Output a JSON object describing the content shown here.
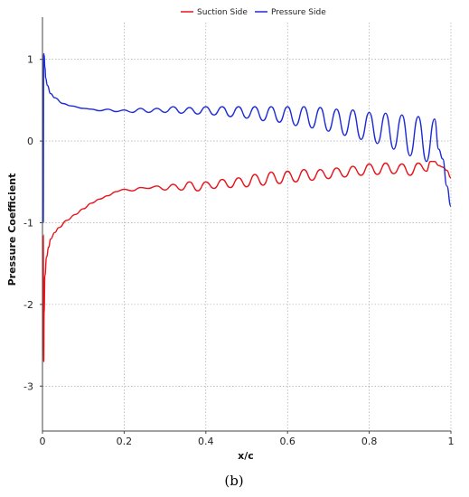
{
  "chart_data": {
    "type": "line",
    "title": "",
    "xlabel": "x/c",
    "ylabel": "Pressure Coefficient",
    "xlim": [
      0,
      1
    ],
    "ylim": [
      -3.55,
      1.45
    ],
    "xticks": [
      0,
      0.2,
      0.4,
      0.6,
      0.8,
      1
    ],
    "xtick_labels": [
      "0",
      "0.2",
      "0.4",
      "0.6",
      "0.8",
      "1"
    ],
    "yticks": [
      1,
      0,
      -1,
      -2,
      -3
    ],
    "ytick_labels": [
      "1",
      "0",
      "-1",
      "-2",
      "-3"
    ],
    "grid": true,
    "legend_position": "top-center",
    "panel_label": "(b)",
    "series": [
      {
        "name": "Suction Side",
        "color": "#e8141b",
        "x": [
          0.002,
          0.003,
          0.004,
          0.006,
          0.01,
          0.015,
          0.02,
          0.03,
          0.04,
          0.06,
          0.08,
          0.1,
          0.12,
          0.14,
          0.16,
          0.18,
          0.2,
          0.22,
          0.24,
          0.26,
          0.28,
          0.3,
          0.32,
          0.34,
          0.36,
          0.38,
          0.4,
          0.42,
          0.44,
          0.46,
          0.48,
          0.5,
          0.52,
          0.54,
          0.56,
          0.58,
          0.6,
          0.62,
          0.64,
          0.66,
          0.68,
          0.7,
          0.72,
          0.74,
          0.76,
          0.78,
          0.8,
          0.82,
          0.84,
          0.86,
          0.88,
          0.9,
          0.92,
          0.94,
          0.95,
          0.96,
          0.97,
          0.98,
          0.99,
          1.0
        ],
        "values": [
          -1.15,
          -2.7,
          -2.1,
          -1.65,
          -1.42,
          -1.3,
          -1.2,
          -1.12,
          -1.06,
          -0.97,
          -0.9,
          -0.83,
          -0.76,
          -0.71,
          -0.67,
          -0.62,
          -0.59,
          -0.61,
          -0.57,
          -0.58,
          -0.55,
          -0.6,
          -0.53,
          -0.6,
          -0.5,
          -0.61,
          -0.5,
          -0.58,
          -0.47,
          -0.57,
          -0.45,
          -0.56,
          -0.41,
          -0.54,
          -0.38,
          -0.52,
          -0.37,
          -0.5,
          -0.35,
          -0.48,
          -0.35,
          -0.46,
          -0.33,
          -0.44,
          -0.31,
          -0.42,
          -0.28,
          -0.41,
          -0.27,
          -0.4,
          -0.28,
          -0.42,
          -0.27,
          -0.37,
          -0.25,
          -0.25,
          -0.3,
          -0.32,
          -0.36,
          -0.45
        ]
      },
      {
        "name": "Pressure Side",
        "color": "#1c2bd6",
        "x": [
          0.002,
          0.003,
          0.004,
          0.006,
          0.008,
          0.012,
          0.02,
          0.03,
          0.05,
          0.07,
          0.1,
          0.12,
          0.14,
          0.16,
          0.18,
          0.2,
          0.22,
          0.24,
          0.26,
          0.28,
          0.3,
          0.32,
          0.34,
          0.36,
          0.38,
          0.4,
          0.42,
          0.44,
          0.46,
          0.48,
          0.5,
          0.52,
          0.54,
          0.56,
          0.58,
          0.6,
          0.62,
          0.64,
          0.66,
          0.68,
          0.7,
          0.72,
          0.74,
          0.76,
          0.78,
          0.8,
          0.82,
          0.84,
          0.86,
          0.88,
          0.9,
          0.92,
          0.94,
          0.96,
          0.97,
          0.98,
          0.99,
          1.0
        ],
        "values": [
          -1.0,
          1.07,
          1.05,
          0.9,
          0.77,
          0.68,
          0.58,
          0.53,
          0.46,
          0.43,
          0.4,
          0.39,
          0.37,
          0.39,
          0.36,
          0.38,
          0.35,
          0.4,
          0.35,
          0.4,
          0.35,
          0.42,
          0.34,
          0.41,
          0.33,
          0.42,
          0.32,
          0.42,
          0.3,
          0.42,
          0.28,
          0.42,
          0.25,
          0.42,
          0.23,
          0.42,
          0.19,
          0.42,
          0.16,
          0.41,
          0.12,
          0.39,
          0.07,
          0.38,
          0.02,
          0.35,
          -0.03,
          0.34,
          -0.1,
          0.32,
          -0.18,
          0.3,
          -0.25,
          0.27,
          -0.1,
          -0.22,
          -0.55,
          -0.8
        ]
      }
    ]
  }
}
